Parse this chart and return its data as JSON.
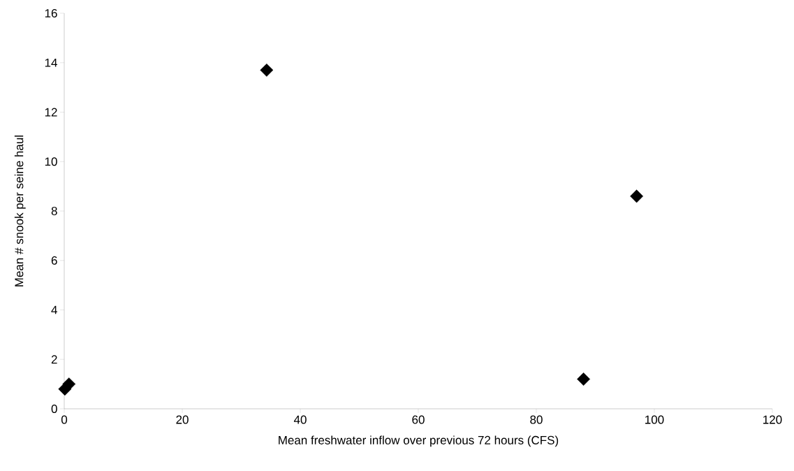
{
  "chart_data": {
    "type": "scatter",
    "xlabel": "Mean freshwater inflow over previous 72 hours (CFS)",
    "ylabel": "Mean # snook per seine haul",
    "series": [
      {
        "color": "#000000",
        "x": [
          0.1,
          0.8,
          34.3,
          88,
          97
        ],
        "values": [
          0.8,
          1.0,
          13.7,
          1.2,
          8.6
        ]
      }
    ],
    "marker": "diamond",
    "grid": false,
    "xlim": [
      0,
      120
    ],
    "xticks": [
      0,
      20,
      40,
      60,
      80,
      100,
      120
    ],
    "ylim": [
      0,
      16
    ],
    "yticks": [
      0,
      2,
      4,
      6,
      8,
      10,
      12,
      14,
      16
    ]
  }
}
